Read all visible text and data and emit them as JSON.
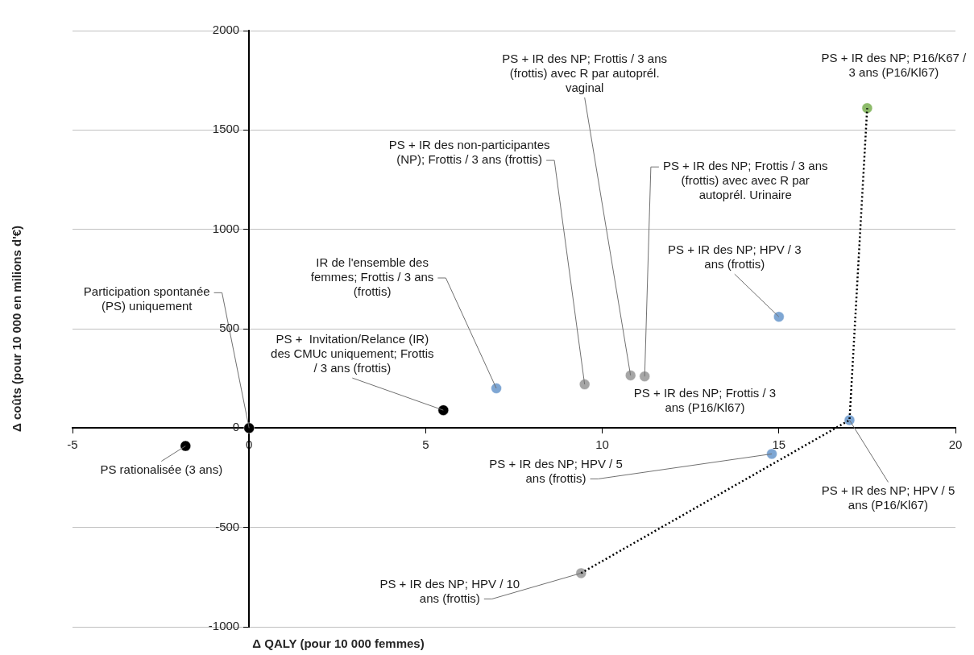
{
  "chart_data": {
    "type": "scatter",
    "xlabel": "Δ QALY (pour 10 000 femmes)",
    "ylabel": "Δ coûts (pour 10 000 en milions d'€)",
    "xlim": [
      -5,
      20
    ],
    "xticks": [
      -5,
      0,
      5,
      10,
      15,
      20
    ],
    "ylim": [
      -1000,
      2000
    ],
    "yticks": [
      -1000,
      -500,
      0,
      500,
      1000,
      1500,
      2000
    ],
    "grid": "y",
    "marker": "circle",
    "series": [
      {
        "type": "scatter",
        "x": [
          -1.8,
          0,
          5.5,
          7,
          9.5,
          10.8,
          11.2,
          15,
          17,
          14.8,
          17.5,
          9.4
        ],
        "values": [
          -90,
          0,
          90,
          200,
          220,
          265,
          260,
          560,
          40,
          -130,
          1610,
          -730
        ],
        "colors": [
          "#000000",
          "#000000",
          "#000000",
          "#7ea6d3",
          "#a6a6a6",
          "#a6a6a6",
          "#a6a6a6",
          "#7ea6d3",
          "#7ea6d3",
          "#7ea6d3",
          "#8dbb6a",
          "#a6a6a6"
        ]
      },
      {
        "type": "line",
        "x": [
          9.4,
          17,
          17.5
        ],
        "values": [
          -730,
          40,
          1610
        ],
        "color": "#000000",
        "line_style": "dotted",
        "marker": "none"
      }
    ],
    "annotations": [
      {
        "text": "PS rationalisée (3 ans)",
        "x": -1.8,
        "y": -90
      },
      {
        "text": "Participation spontanée (PS) uniquement",
        "x": 0,
        "y": 0
      },
      {
        "text": "PS +  Invitation/Relance (IR) des CMUc uniquement; Frottis / 3 ans (frottis)",
        "x": 5.5,
        "y": 90
      },
      {
        "text": "IR de l'ensemble des femmes; Frottis / 3 ans (frottis)",
        "x": 7,
        "y": 200
      },
      {
        "text": "PS + IR des non-participantes (NP); Frottis / 3 ans (frottis)",
        "x": 9.5,
        "y": 220
      },
      {
        "text": "PS + IR des NP; Frottis / 3 ans (frottis) avec R par autoprél. vaginal",
        "x": 10.8,
        "y": 265
      },
      {
        "text": "PS + IR des NP; Frottis / 3 ans (frottis) avec avec R par autoprél. Urinaire",
        "x": 11.2,
        "y": 260
      },
      {
        "text": "PS + IR des NP; HPV / 3 ans (frottis)",
        "x": 15,
        "y": 560
      },
      "PS + IR des NP; Frottis / 3 ans (P16/Kl67)",
      {
        "text": "PS + IR des NP; HPV / 5 ans (frottis)",
        "x": 14.8,
        "y": -130
      },
      {
        "text": "PS + IR des NP; HPV / 5 ans (P16/Kl67)",
        "x": 17,
        "y": 40
      },
      {
        "text": "PS + IR des NP; HPV / 10 ans (frottis)",
        "x": 9.4,
        "y": -730
      },
      {
        "text": "PS + IR des NP; P16/K67 / 3 ans (P16/Kl67)",
        "x": 17.5,
        "y": 1610
      }
    ]
  }
}
